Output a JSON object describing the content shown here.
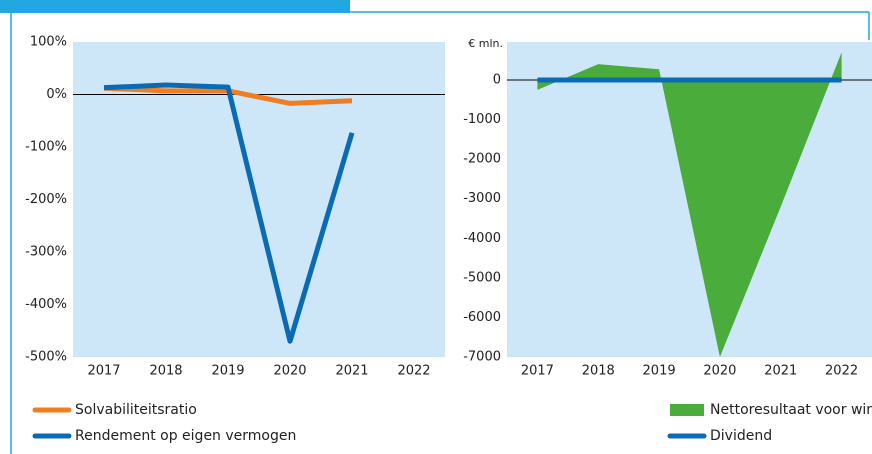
{
  "chart_data": [
    {
      "type": "line",
      "categories": [
        "2017",
        "2018",
        "2019",
        "2020",
        "2021",
        "2022"
      ],
      "series": [
        {
          "name": "Solvabiliteitsratio",
          "color": "#ef7d22",
          "type": "line",
          "values": [
            12,
            7,
            7,
            -17,
            -12,
            null
          ]
        },
        {
          "name": "Rendement op eigen vermogen",
          "color": "#0a6bb4",
          "type": "line",
          "values": [
            13,
            18,
            14,
            -470,
            -73,
            null
          ]
        }
      ],
      "ylim": [
        -500,
        100
      ],
      "yticks": [
        {
          "value": 100,
          "label": "100%"
        },
        {
          "value": 0,
          "label": "0%"
        },
        {
          "value": -100,
          "label": "-100%"
        },
        {
          "value": -200,
          "label": "-200%"
        },
        {
          "value": -300,
          "label": "-300%"
        },
        {
          "value": -400,
          "label": "-400%"
        },
        {
          "value": -500,
          "label": "-500%"
        }
      ],
      "background": "#cde7f9"
    },
    {
      "type": "area",
      "y_axis_label": "€ mln.",
      "categories": [
        "2017",
        "2018",
        "2019",
        "2020",
        "2021",
        "2022"
      ],
      "series": [
        {
          "name": "Nettoresultaat voor winstbestemming",
          "color": "#4aac3b",
          "type": "area",
          "values": [
            -250,
            400,
            270,
            -7000,
            -3200,
            700
          ]
        },
        {
          "name": "Dividend",
          "color": "#0a6bb4",
          "type": "line",
          "values": [
            0,
            0,
            0,
            0,
            0,
            0
          ]
        }
      ],
      "ylim": [
        -7000,
        960
      ],
      "yticks": [
        0,
        -1000,
        -2000,
        -3000,
        -4000,
        -5000,
        -6000,
        -7000
      ],
      "background": "#cde7f9"
    }
  ]
}
